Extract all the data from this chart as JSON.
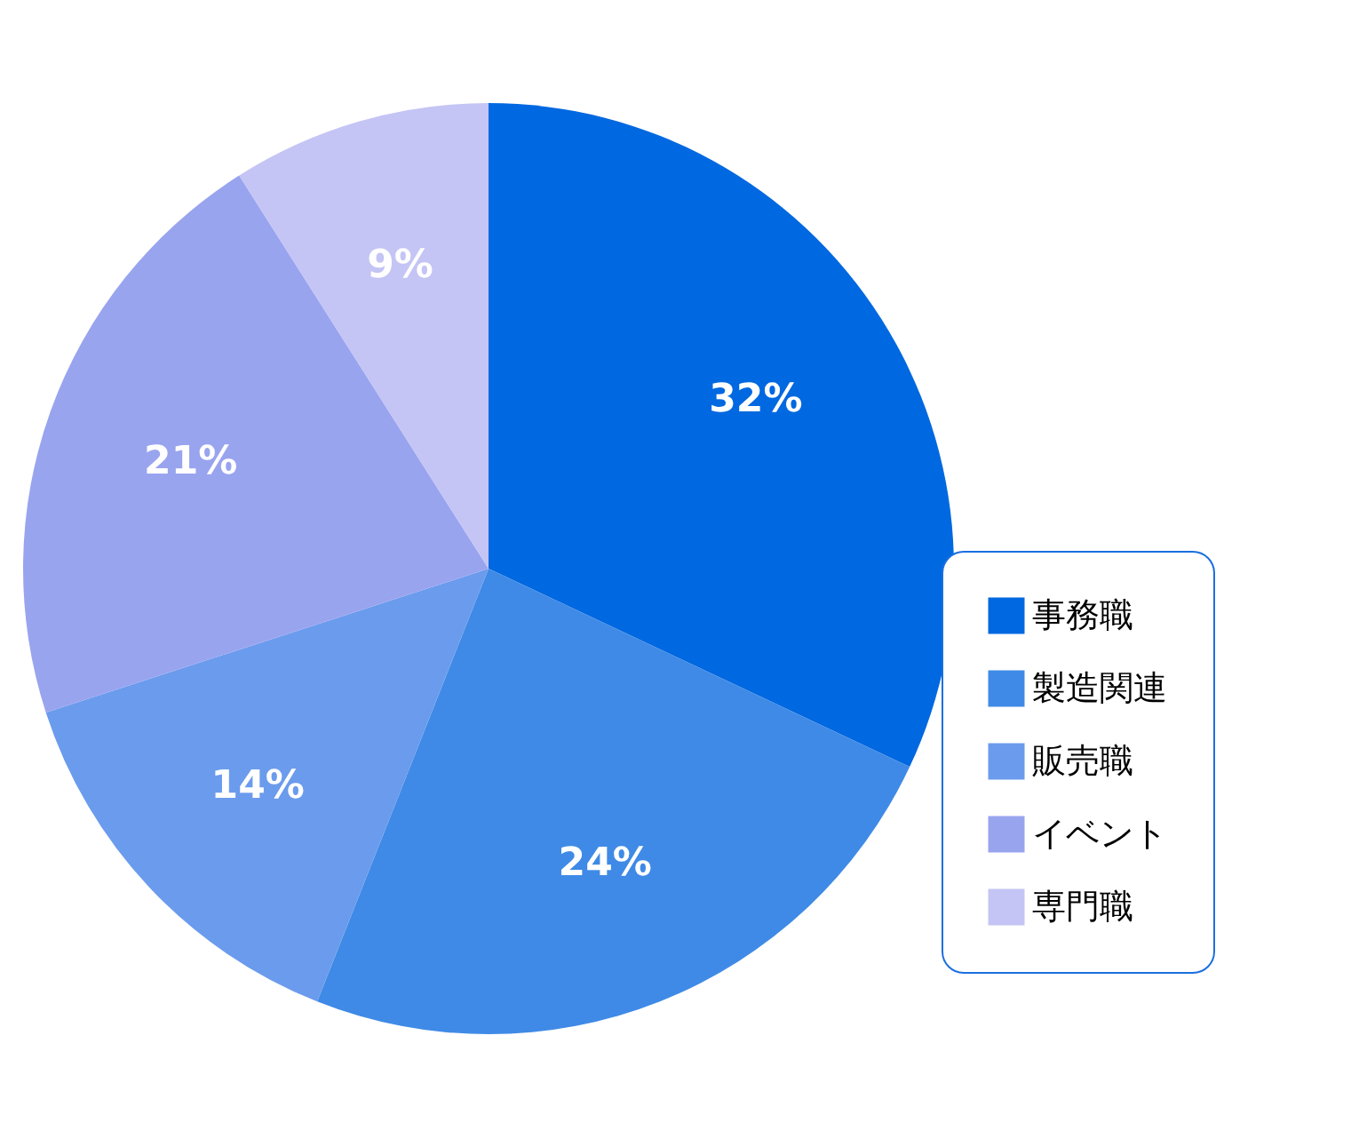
{
  "chart_data": {
    "type": "pie",
    "categories": [
      "事務職",
      "製造関連",
      "販売職",
      "イベント",
      "専門職"
    ],
    "values": [
      32,
      24,
      14,
      21,
      9
    ],
    "colors": [
      "#0068e0",
      "#3f8ae6",
      "#6b9bec",
      "#99a4ef",
      "#c4c4f5"
    ],
    "value_labels": [
      "32%",
      "24%",
      "14%",
      "21%",
      "9%"
    ],
    "legend": "bottom right"
  }
}
